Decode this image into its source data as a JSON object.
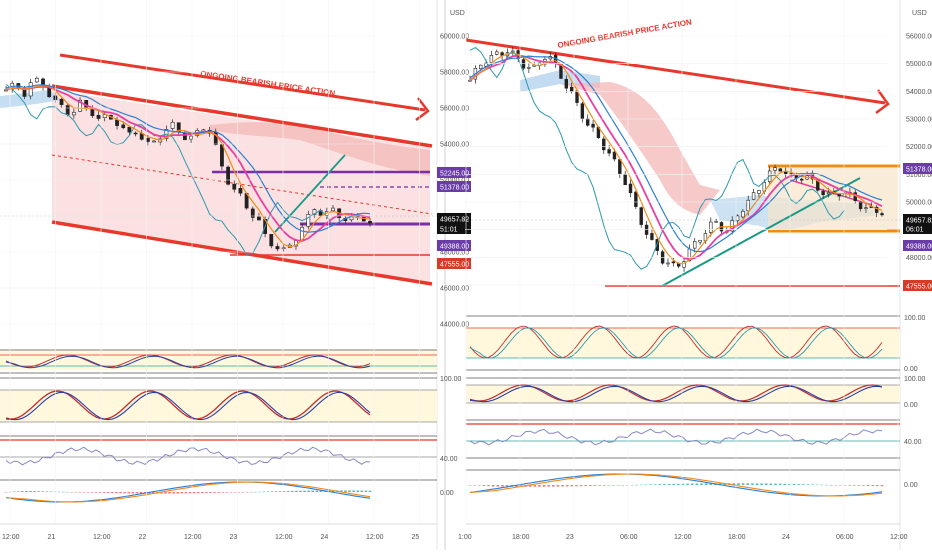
{
  "colors": {
    "channel": "#e8382c",
    "channel_fill": "#f7c9c9",
    "resist": "#7b2fa6",
    "support_orange": "#f28c0f",
    "trend": "#1a9a86",
    "ma_pink": "#e83fa2",
    "ma_orange": "#f08a18",
    "ma_blue": "#2a7fd6",
    "lagging": "#2f97ae",
    "cloud_red": "#f4b8b8",
    "cloud_blue": "#b8d6ee",
    "osc_zone": "#fff8dc",
    "osc_k": "#c22d2d",
    "osc_d": "#2e3fa8",
    "rsi": "#8a86c6",
    "macd_fast": "#2a7fd6",
    "macd_slow": "#f08a18",
    "hist_pos": "#26a69a",
    "hist_neg": "#ef5350",
    "candle_up": "#ffffff",
    "candle_down": "#222222",
    "tag_last": "#111111",
    "tag_purple": "#6a3ca8",
    "tag_red": "#d83a2a"
  },
  "currency": "USD",
  "chart_data": [
    {
      "type": "candlestick",
      "name": "left",
      "title": "ONGOING BEARISH PRICE ACTION",
      "price_axis": [
        "60000.00",
        "58000.00",
        "56000.00",
        "54000.00",
        "52000.00",
        "50000.00",
        "48000.00",
        "46000.00",
        "44000.00"
      ],
      "time_axis": [
        "12:00",
        "21",
        "12:00",
        "22",
        "12:00",
        "23",
        "12:00",
        "24",
        "12:00",
        "25"
      ],
      "price_tags": [
        {
          "value": "52245.00",
          "color": "tag_purple"
        },
        {
          "value": "51378.00",
          "color": "tag_purple"
        },
        {
          "value": "49657.82",
          "color": "tag_last"
        },
        {
          "value": "51:01",
          "color": "tag_last"
        },
        {
          "value": "49388.00",
          "color": "tag_purple"
        },
        {
          "value": "47555.00",
          "color": "tag_red"
        }
      ],
      "close_series": [
        57000,
        57300,
        56800,
        57600,
        57300,
        56400,
        56100,
        55600,
        56300,
        55900,
        55300,
        55600,
        55100,
        54500,
        54800,
        53900,
        54200,
        54700,
        55100,
        54400,
        54300,
        55000,
        54600,
        52900,
        51700,
        51200,
        50300,
        49800,
        48600,
        48300,
        48000,
        48800,
        49600,
        50400,
        50100,
        50300,
        49900,
        49800,
        50000,
        49657
      ],
      "levels": [
        52245,
        51378,
        49388,
        47555
      ],
      "osc_ticks": [
        "100.00",
        "40.00",
        "0.00"
      ]
    },
    {
      "type": "candlestick",
      "name": "right",
      "title": "ONGOING BEARISH PRICE ACTION",
      "price_axis": [
        "56000.00",
        "55000.00",
        "54000.00",
        "53000.00",
        "52000.00",
        "51000.00",
        "50000.00",
        "49000.00",
        "48000.00",
        "47000.00"
      ],
      "time_axis": [
        "1:00",
        "18:00",
        "23",
        "06:00",
        "12:00",
        "18:00",
        "24",
        "06:00",
        "12:00"
      ],
      "price_tags": [
        {
          "value": "51378.00",
          "color": "tag_purple"
        },
        {
          "value": "49657.82",
          "color": "tag_last"
        },
        {
          "value": "06:01",
          "color": "tag_last"
        },
        {
          "value": "49388.00",
          "color": "tag_purple"
        },
        {
          "value": "47555.00",
          "color": "tag_red"
        }
      ],
      "close_series": [
        54400,
        55100,
        55300,
        55500,
        55000,
        54800,
        55400,
        54600,
        53800,
        52900,
        52300,
        51600,
        50800,
        49600,
        48600,
        47900,
        47600,
        48200,
        48800,
        49300,
        48900,
        49700,
        50200,
        50900,
        51300,
        50800,
        51000,
        50500,
        50200,
        50400,
        50000,
        49700,
        49657
      ],
      "levels": [
        51378,
        49388,
        47555
      ],
      "osc_ticks": [
        "100.00",
        "0.00",
        "100.00",
        "0.00",
        "40.00",
        "0.00"
      ]
    }
  ]
}
